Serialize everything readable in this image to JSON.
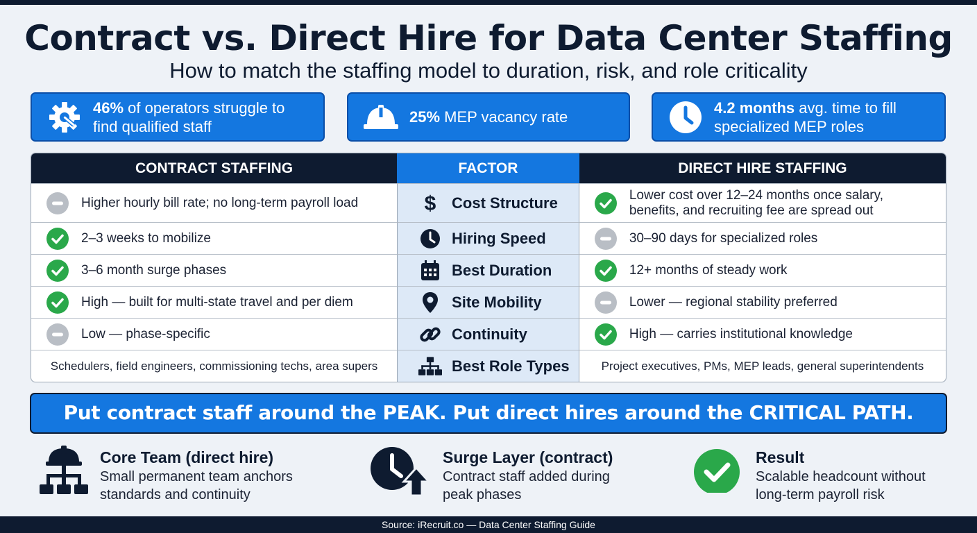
{
  "title": "Contract vs. Direct Hire for Data Center Staffing",
  "subtitle": "How to match the staffing model to duration, risk, and role criticality",
  "stats": [
    {
      "icon": "gear-wrench-icon",
      "bold": "46%",
      "rest": " of operators struggle to",
      "line2": "find qualified staff"
    },
    {
      "icon": "hard-hat-icon",
      "bold": "25%",
      "rest": " MEP vacancy rate",
      "line2": ""
    },
    {
      "icon": "clock-icon",
      "bold": "4.2 months",
      "rest": " avg. time to fill",
      "line2": "specialized MEP roles"
    }
  ],
  "table": {
    "headers": {
      "left": "CONTRACT STAFFING",
      "middle": "FACTOR",
      "right": "DIRECT HIRE STAFFING"
    },
    "rows": [
      {
        "factor": "Cost Structure",
        "factor_icon": "dollar-icon",
        "left": "Higher hourly bill rate; no long-term payroll load",
        "left_mark": "neutral",
        "right": "Lower cost over 12–24 months once salary,",
        "right2": "benefits, and recruiting fee are spread out",
        "right_mark": "check"
      },
      {
        "factor": "Hiring Speed",
        "factor_icon": "clock-icon",
        "left": "2–3 weeks to mobilize",
        "left_mark": "check",
        "right": "30–90 days for specialized roles",
        "right2": "",
        "right_mark": "neutral"
      },
      {
        "factor": "Best Duration",
        "factor_icon": "calendar-icon",
        "left": "3–6 month surge phases",
        "left_mark": "check",
        "right": "12+ months of steady work",
        "right2": "",
        "right_mark": "check"
      },
      {
        "factor": "Site Mobility",
        "factor_icon": "location-pin-icon",
        "left": "High — built for multi-state travel and per diem",
        "left_mark": "check",
        "right": "Lower — regional stability preferred",
        "right2": "",
        "right_mark": "neutral"
      },
      {
        "factor": "Continuity",
        "factor_icon": "link-icon",
        "left": "Low — phase-specific",
        "left_mark": "neutral",
        "right": "High — carries institutional knowledge",
        "right2": "",
        "right_mark": "check"
      },
      {
        "factor": "Best Role Types",
        "factor_icon": "org-chart-icon",
        "left": "Schedulers, field engineers, commissioning techs, area supers",
        "left_mark": "none",
        "right": "Project executives, PMs, MEP leads, general superintendents",
        "right2": "",
        "right_mark": "none"
      }
    ]
  },
  "banner": "Put contract staff around the PEAK. Put direct hires around the CRITICAL PATH.",
  "bottom": [
    {
      "icon": "hard-hat-org-icon",
      "title": "Core Team (direct hire)",
      "line1": "Small permanent team anchors",
      "line2": "standards and continuity"
    },
    {
      "icon": "clock-arrow-up-icon",
      "title": "Surge Layer (contract)",
      "line1": "Contract staff added during",
      "line2": "peak phases"
    },
    {
      "icon": "check-circle-icon",
      "title": "Result",
      "line1": "Scalable headcount without",
      "line2": "long-term payroll risk"
    }
  ],
  "footer": "Source: iRecruit.co — Data Center Staffing Guide",
  "colors": {
    "navy": "#0e1b30",
    "blue": "#1477e0",
    "green": "#2aa84a",
    "gray": "#b9bec5"
  }
}
